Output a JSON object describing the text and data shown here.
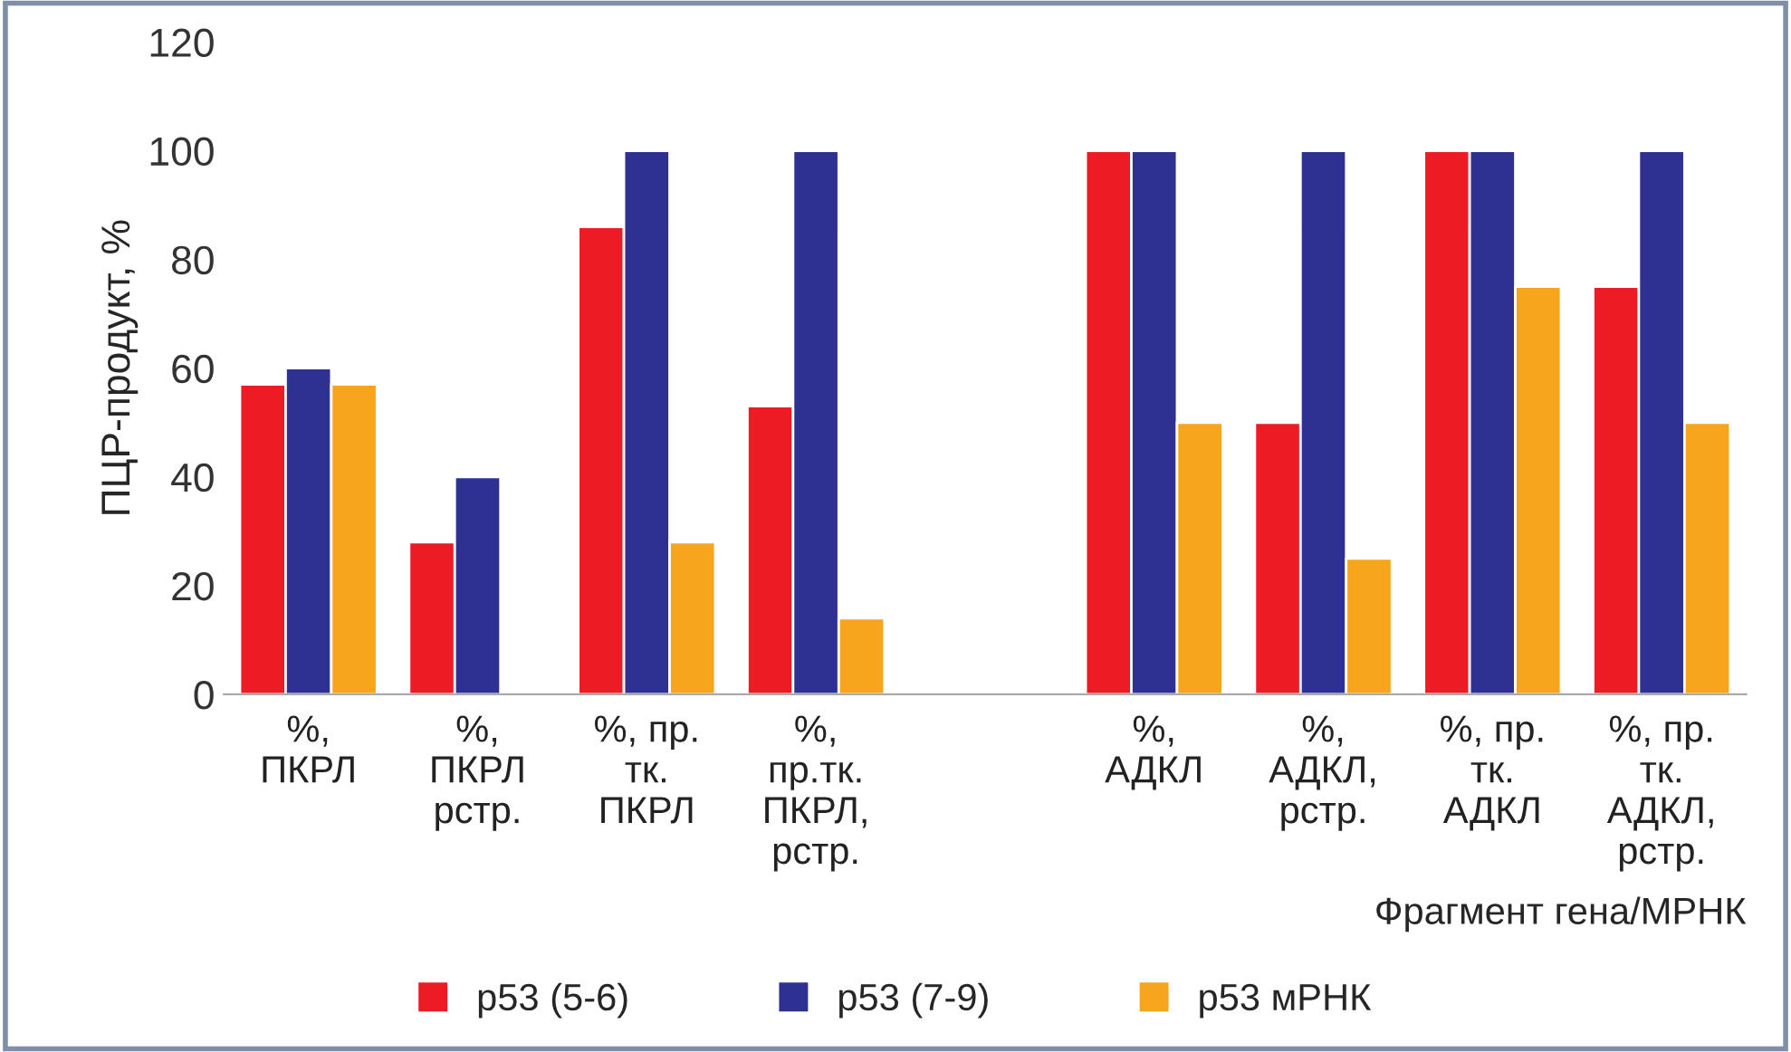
{
  "chart_data": {
    "type": "bar",
    "ylabel": "ПЦР-продукт, %",
    "xlabel": "Фрагмент гена/МРНК",
    "categories": [
      "%,\nПКРЛ",
      "%,\nПКРЛ\nрстр.",
      "%, пр.\nтк.\nПКРЛ",
      "%,\nпр.тк.\nПКРЛ,\nрстр.",
      null,
      "%,\nАДКЛ",
      "%,\nАДКЛ,\nрстр.",
      "%, пр.\nтк.\nАДКЛ",
      "%, пр.\nтк.\nАДКЛ,\nрстр."
    ],
    "series": [
      {
        "name": "p53 (5-6)",
        "color": "#ed1c24",
        "values": [
          57,
          28,
          86,
          53,
          null,
          100,
          50,
          100,
          75
        ]
      },
      {
        "name": "p53 (7-9)",
        "color": "#2e3192",
        "values": [
          60,
          40,
          100,
          100,
          null,
          100,
          100,
          100,
          100
        ]
      },
      {
        "name": "p53 мРНК",
        "color": "#f7a51c",
        "values": [
          57,
          null,
          28,
          14,
          null,
          50,
          25,
          75,
          50
        ]
      }
    ],
    "ylim": [
      0,
      120
    ],
    "yticks": [
      0,
      20,
      40,
      60,
      80,
      100,
      120
    ],
    "grid": false,
    "legend": "bottom"
  }
}
